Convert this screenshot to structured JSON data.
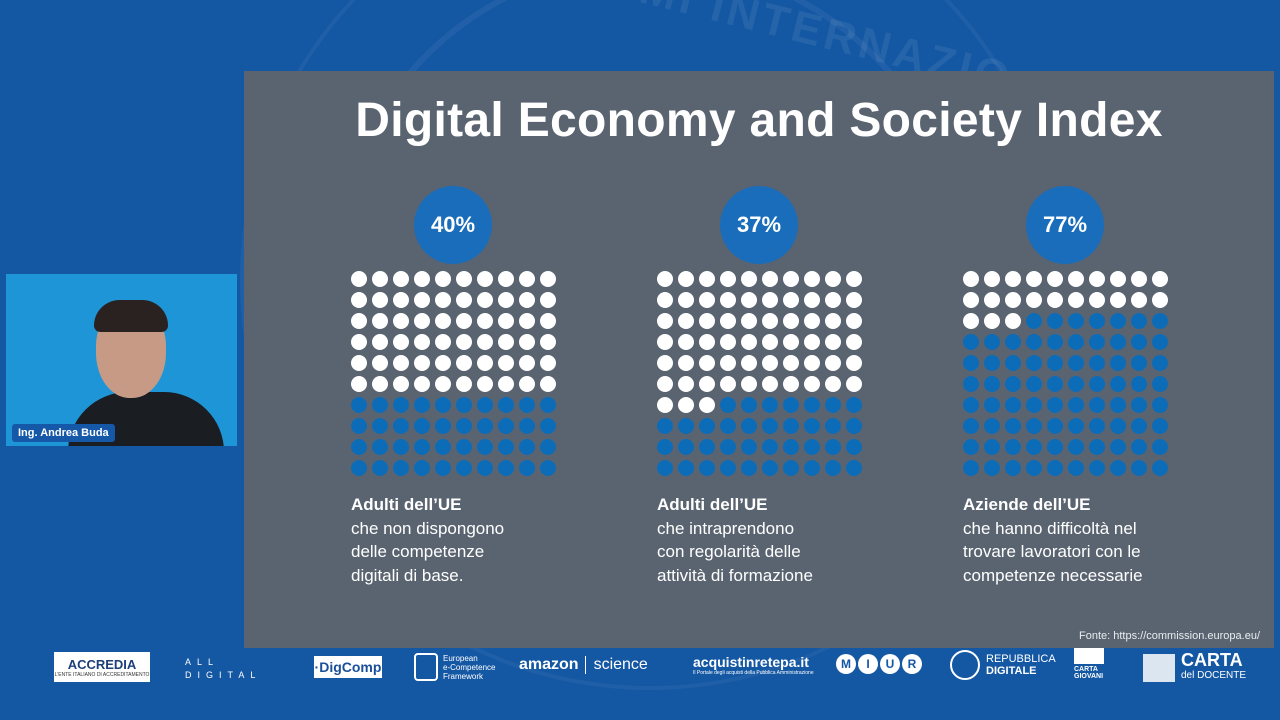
{
  "background": {
    "watermark_text": "AMMI INTERNAZIO"
  },
  "slide": {
    "title": "Digital Economy and Society Index",
    "source": "Fonte: https://commission.europa.eu/",
    "stats": [
      {
        "percent_label": "40%",
        "percent_value": 40,
        "caption_head": "Adulti dell’UE",
        "caption_lines": [
          "che non dispongono",
          "delle competenze",
          "digitali di base."
        ]
      },
      {
        "percent_label": "37%",
        "percent_value": 37,
        "caption_head": "Adulti dell’UE",
        "caption_lines": [
          "che intraprendono",
          "con regolarità delle",
          "attività di formazione"
        ]
      },
      {
        "percent_label": "77%",
        "percent_value": 77,
        "caption_head": "Aziende dell’UE",
        "caption_lines": [
          "che hanno difficoltà nel",
          "trovare lavoratori con le",
          "competenze necessarie"
        ]
      }
    ],
    "colors": {
      "slide_bg": "#5a6470",
      "accent_blue": "#0d6cb8",
      "dot_white": "#ffffff"
    }
  },
  "webcam": {
    "name": "Ing. Andrea Buda"
  },
  "logos": {
    "accredia": "ACCREDIA",
    "accredia_sub": "L'ENTE ITALIANO DI ACCREDITAMENTO",
    "alldigital_line1": "ALL",
    "alldigital_line2": "DIGITAL",
    "digcomp": "·DigComp",
    "ecf_line1": "European",
    "ecf_line2": "e-Competence",
    "ecf_line3": "Framework",
    "amazon": "amazon",
    "amazon_science": "science",
    "acquisti": "acquistinretepa.it",
    "acquisti_sub": "Il Portale degli acquisti della Pubblica Amministrazione",
    "miur": [
      "M",
      "I",
      "U",
      "R"
    ],
    "repubblica_line1": "REPUBBLICA",
    "repubblica_line2": "DIGITALE",
    "cgn_line1": "CARTA",
    "cgn_line2": "GIOVANI",
    "cdd_main": "CARTA",
    "cdd_sub": "del DOCENTE"
  }
}
